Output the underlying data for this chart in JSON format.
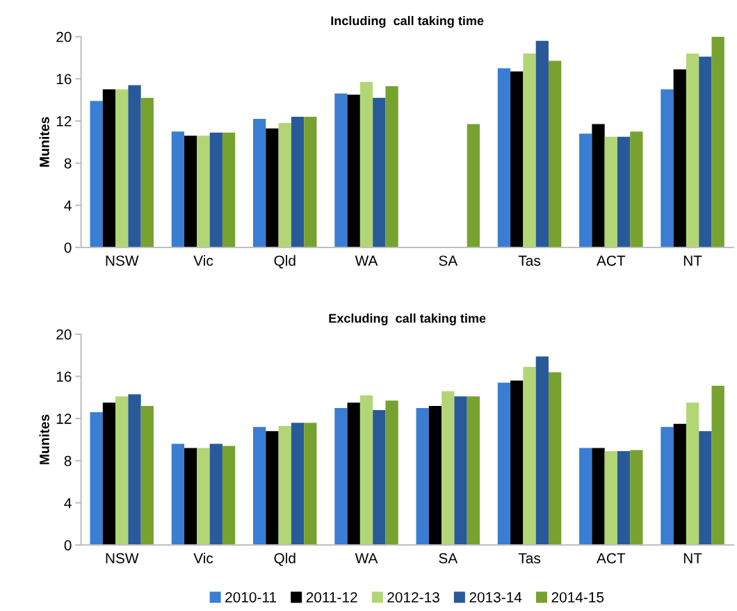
{
  "chart_data": [
    {
      "type": "bar",
      "title": "Including  call taking time",
      "ylabel": "Munites",
      "categories": [
        "NSW",
        "Vic",
        "Qld",
        "WA",
        "SA",
        "Tas",
        "ACT",
        "NT"
      ],
      "series": [
        {
          "color": "#3a7dd2",
          "values": [
            13.9,
            11.0,
            12.2,
            14.6,
            null,
            17.0,
            10.8,
            15.0
          ]
        },
        {
          "color": "#000000",
          "values": [
            15.0,
            10.6,
            11.3,
            14.5,
            null,
            16.7,
            11.7,
            16.9
          ]
        },
        {
          "color": "#b2d675",
          "values": [
            15.0,
            10.6,
            11.8,
            15.7,
            null,
            18.4,
            10.5,
            18.4
          ]
        },
        {
          "color": "#285a9a",
          "values": [
            15.4,
            10.9,
            12.4,
            14.2,
            null,
            19.6,
            10.5,
            18.1
          ]
        },
        {
          "color": "#78a22f",
          "values": [
            14.2,
            10.9,
            12.4,
            15.3,
            11.7,
            17.7,
            11.0,
            20.0
          ]
        }
      ],
      "ylim": [
        0,
        20
      ],
      "yticks": [
        0,
        4,
        8,
        12,
        16,
        20
      ],
      "grid": false,
      "legend": false
    },
    {
      "type": "bar",
      "title": "Excluding  call taking time",
      "ylabel": "Munites",
      "categories": [
        "NSW",
        "Vic",
        "Qld",
        "WA",
        "SA",
        "Tas",
        "ACT",
        "NT"
      ],
      "series": [
        {
          "name": "2010-11",
          "color": "#3a7dd2",
          "values": [
            12.6,
            9.6,
            11.2,
            13.0,
            13.0,
            15.4,
            9.2,
            11.2
          ]
        },
        {
          "name": "2011-12",
          "color": "#000000",
          "values": [
            13.5,
            9.2,
            10.8,
            13.5,
            13.2,
            15.6,
            9.2,
            11.5
          ]
        },
        {
          "name": "2012-13",
          "color": "#b2d675",
          "values": [
            14.1,
            9.2,
            11.3,
            14.2,
            14.6,
            16.9,
            8.9,
            13.5
          ]
        },
        {
          "name": "2013-14",
          "color": "#285a9a",
          "values": [
            14.3,
            9.6,
            11.6,
            12.8,
            14.1,
            17.9,
            8.9,
            10.8
          ]
        },
        {
          "name": "2014-15",
          "color": "#78a22f",
          "values": [
            13.2,
            9.4,
            11.6,
            13.7,
            14.1,
            16.4,
            9.0,
            15.1
          ]
        }
      ],
      "ylim": [
        0,
        20
      ],
      "yticks": [
        0,
        4,
        8,
        12,
        16,
        20
      ],
      "grid": false,
      "legend": "bottom"
    }
  ]
}
